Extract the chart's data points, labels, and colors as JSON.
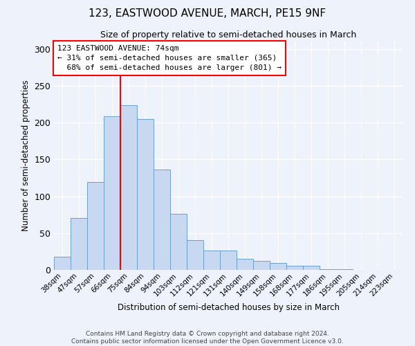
{
  "title": "123, EASTWOOD AVENUE, MARCH, PE15 9NF",
  "subtitle": "Size of property relative to semi-detached houses in March",
  "xlabel": "Distribution of semi-detached houses by size in March",
  "ylabel": "Number of semi-detached properties",
  "bar_color": "#c8d8f0",
  "bar_edge_color": "#6a9fd0",
  "background_color": "#eef2fb",
  "grid_color": "#ffffff",
  "categories": [
    "38sqm",
    "47sqm",
    "57sqm",
    "66sqm",
    "75sqm",
    "84sqm",
    "94sqm",
    "103sqm",
    "112sqm",
    "121sqm",
    "131sqm",
    "140sqm",
    "149sqm",
    "158sqm",
    "168sqm",
    "177sqm",
    "186sqm",
    "195sqm",
    "205sqm",
    "214sqm",
    "223sqm"
  ],
  "values": [
    18,
    70,
    119,
    209,
    224,
    205,
    136,
    76,
    40,
    26,
    26,
    15,
    12,
    9,
    6,
    6,
    1,
    1,
    0,
    0,
    0
  ],
  "ylim": [
    0,
    310
  ],
  "yticks": [
    0,
    50,
    100,
    150,
    200,
    250,
    300
  ],
  "property_label": "123 EASTWOOD AVENUE: 74sqm",
  "pct_smaller": 31,
  "n_smaller": 365,
  "pct_larger": 68,
  "n_larger": 801,
  "vline_x_index": 4,
  "footer_line1": "Contains HM Land Registry data © Crown copyright and database right 2024.",
  "footer_line2": "Contains public sector information licensed under the Open Government Licence v3.0."
}
